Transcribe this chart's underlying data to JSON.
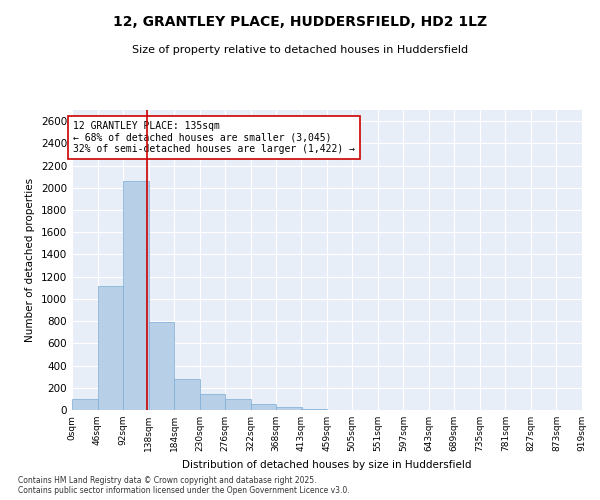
{
  "title": "12, GRANTLEY PLACE, HUDDERSFIELD, HD2 1LZ",
  "subtitle": "Size of property relative to detached houses in Huddersfield",
  "xlabel": "Distribution of detached houses by size in Huddersfield",
  "ylabel": "Number of detached properties",
  "bar_color": "#b8cfe8",
  "bar_edge_color": "#7aadd4",
  "background_color": "#e8eef8",
  "grid_color": "#ffffff",
  "vline_x": 135,
  "vline_color": "#cc0000",
  "bin_edges": [
    0,
    46,
    92,
    138,
    184,
    230,
    276,
    322,
    368,
    413,
    459,
    505,
    551,
    597,
    643,
    689,
    735,
    781,
    827,
    873,
    919
  ],
  "bar_heights": [
    100,
    1120,
    2060,
    790,
    275,
    148,
    95,
    55,
    28,
    8,
    2,
    1,
    0,
    0,
    0,
    0,
    0,
    0,
    0,
    0
  ],
  "ylim": [
    0,
    2700
  ],
  "yticks": [
    0,
    200,
    400,
    600,
    800,
    1000,
    1200,
    1400,
    1600,
    1800,
    2000,
    2200,
    2400,
    2600
  ],
  "annotation_box_text": "12 GRANTLEY PLACE: 135sqm\n← 68% of detached houses are smaller (3,045)\n32% of semi-detached houses are larger (1,422) →",
  "annotation_box_color": "#cc0000",
  "footnote": "Contains HM Land Registry data © Crown copyright and database right 2025.\nContains public sector information licensed under the Open Government Licence v3.0."
}
